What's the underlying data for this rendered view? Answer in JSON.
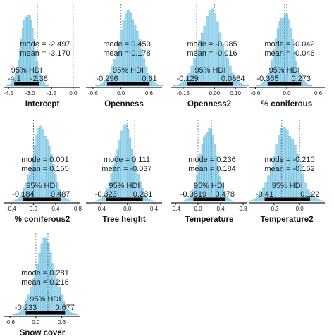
{
  "chart_data": [
    {
      "type": "bar",
      "xlabel": "Intercept",
      "mode": "-2.497",
      "mean": "-3.170",
      "hdi_label": "95% HDI",
      "hdi_low": "-4.1",
      "hdi_high": "-2.38",
      "hdi": [
        -4.1,
        -2.38
      ],
      "mode_value": -2.497,
      "mean_value": -3.17,
      "sd": 0.45,
      "xlim": [
        -4.7,
        0.4
      ],
      "ticks": [
        -4.5,
        -3.0,
        -1.5,
        0.0
      ],
      "tick_labels": [
        "-4.5",
        "-3.0",
        "-1.5",
        "0.0"
      ]
    },
    {
      "type": "bar",
      "xlabel": "Openness",
      "mode": "0.450",
      "mean": "0.178",
      "hdi_label": "95% HDI",
      "hdi_low": "-0.296",
      "hdi_high": "0.61",
      "hdi": [
        -0.296,
        0.61
      ],
      "mode_value": 0.45,
      "mean_value": 0.178,
      "sd": 0.22,
      "xlim": [
        -0.72,
        0.85
      ],
      "ticks": [
        -0.6,
        0.0,
        0.6
      ],
      "tick_labels": [
        "-0.6",
        "0.0",
        "0.6"
      ]
    },
    {
      "type": "bar",
      "xlabel": "Openness2",
      "mode": "-0.085",
      "mean": "-0.016",
      "hdi_label": "95% HDI",
      "hdi_low": "-0.129",
      "hdi_high": "0.0884",
      "hdi": [
        -0.129,
        0.0884
      ],
      "mode_value": -0.085,
      "mean_value": -0.016,
      "sd": 0.055,
      "xlim": [
        -0.2,
        0.15
      ],
      "ticks": [
        -0.15,
        0.0,
        0.1
      ],
      "tick_labels": [
        "-0.15",
        "0.00",
        "0.10"
      ]
    },
    {
      "type": "bar",
      "xlabel": "% coniferous",
      "mode": "-0.042",
      "mean": "-0.046",
      "hdi_label": "95% HDI",
      "hdi_low": "-0.365",
      "hdi_high": "0.273",
      "hdi": [
        -0.365,
        0.273
      ],
      "mode_value": -0.042,
      "mean_value": -0.046,
      "sd": 0.16,
      "xlim": [
        -0.7,
        0.7
      ],
      "ticks": [
        -0.6,
        0.0,
        0.6
      ],
      "tick_labels": [
        "-0.6",
        "0.0",
        "0.6"
      ]
    },
    {
      "type": "bar",
      "xlabel": "% coniferous2",
      "mode": "0.001",
      "mean": "0.155",
      "hdi_label": "95% HDI",
      "hdi_low": "-0.184",
      "hdi_high": "0.487",
      "hdi": [
        -0.184,
        0.487
      ],
      "mode_value": 0.001,
      "mean_value": 0.155,
      "sd": 0.17,
      "xlim": [
        -0.5,
        0.82
      ],
      "ticks": [
        -0.4,
        0.0,
        0.4,
        0.8
      ],
      "tick_labels": [
        "-0.4",
        "0.0",
        "0.4",
        "0.8"
      ]
    },
    {
      "type": "bar",
      "xlabel": "Tree height",
      "mode": "0.111",
      "mean": "-0.037",
      "hdi_label": "95% HDI",
      "hdi_low": "-0.323",
      "hdi_high": "0.231",
      "hdi": [
        -0.323,
        0.231
      ],
      "mode_value": 0.111,
      "mean_value": -0.037,
      "sd": 0.14,
      "xlim": [
        -0.6,
        0.5
      ],
      "ticks": [
        -0.4,
        0.0,
        0.4
      ],
      "tick_labels": [
        "-0.4",
        "0.0",
        "0.4"
      ]
    },
    {
      "type": "bar",
      "xlabel": "Temperature",
      "mode": "0.236",
      "mean": "0.184",
      "hdi_label": "95% HDI",
      "hdi_low": "-0.0819",
      "hdi_high": "0.478",
      "hdi": [
        -0.0819,
        0.478
      ],
      "mode_value": 0.236,
      "mean_value": 0.184,
      "sd": 0.14,
      "xlim": [
        -0.45,
        0.85
      ],
      "ticks": [
        -0.4,
        0.0,
        0.4,
        0.8
      ],
      "tick_labels": [
        "-0.4",
        "0.0",
        "0.4",
        "0.8"
      ]
    },
    {
      "type": "bar",
      "xlabel": "Temperature2",
      "mode": "-0.210",
      "mean": "-0.162",
      "hdi_label": "95% HDI",
      "hdi_low": "-0.41",
      "hdi_high": "0.122",
      "hdi": [
        -0.41,
        0.122
      ],
      "mode_value": -0.21,
      "mean_value": -0.162,
      "sd": 0.14,
      "xlim": [
        -0.58,
        0.28
      ],
      "ticks": [
        -0.3,
        0.0
      ],
      "tick_labels": [
        "-0.3",
        "0.0"
      ]
    },
    {
      "type": "bar",
      "xlabel": "Snow cover",
      "mode": "0.281",
      "mean": "0.216",
      "hdi_label": "95% HDI",
      "hdi_low": "-0.233",
      "hdi_high": "0.677",
      "hdi": [
        -0.233,
        0.677
      ],
      "mode_value": 0.281,
      "mean_value": 0.216,
      "sd": 0.23,
      "xlim": [
        -0.7,
        1.0
      ],
      "ticks": [
        -0.6,
        0.0,
        0.6
      ],
      "tick_labels": [
        "-0.6",
        "0.0",
        "0.6"
      ]
    }
  ]
}
